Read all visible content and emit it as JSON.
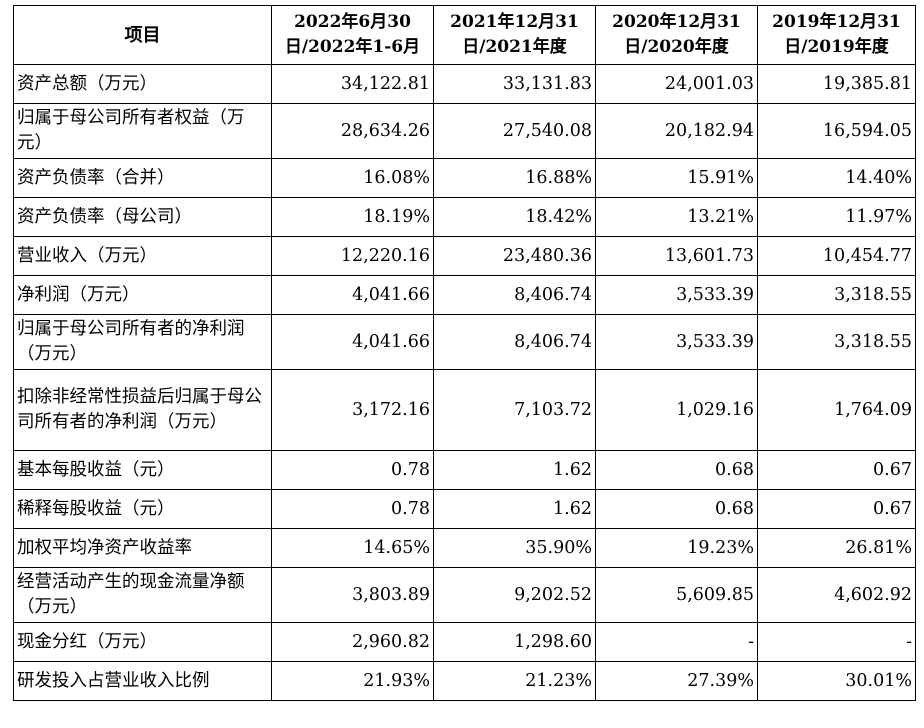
{
  "table": {
    "headers": [
      "项目",
      "2022年6月30日/2022年1-6月",
      "2021年12月31日/2021年度",
      "2020年12月31日/2020年度",
      "2019年12月31日/2019年度"
    ],
    "rows": [
      {
        "label": "资产总额（万元）",
        "values": [
          "34,122.81",
          "33,131.83",
          "24,001.03",
          "19,385.81"
        ]
      },
      {
        "label": "归属于母公司所有者权益（万元）",
        "values": [
          "28,634.26",
          "27,540.08",
          "20,182.94",
          "16,594.05"
        ]
      },
      {
        "label": "资产负债率（合并）",
        "values": [
          "16.08%",
          "16.88%",
          "15.91%",
          "14.40%"
        ]
      },
      {
        "label": "资产负债率（母公司）",
        "values": [
          "18.19%",
          "18.42%",
          "13.21%",
          "11.97%"
        ]
      },
      {
        "label": "营业收入（万元）",
        "values": [
          "12,220.16",
          "23,480.36",
          "13,601.73",
          "10,454.77"
        ]
      },
      {
        "label": "净利润（万元）",
        "values": [
          "4,041.66",
          "8,406.74",
          "3,533.39",
          "3,318.55"
        ]
      },
      {
        "label": "归属于母公司所有者的净利润（万元）",
        "values": [
          "4,041.66",
          "8,406.74",
          "3,533.39",
          "3,318.55"
        ]
      },
      {
        "label": "扣除非经常性损益后归属于母公司所有者的净利润（万元）",
        "values": [
          "3,172.16",
          "7,103.72",
          "1,029.16",
          "1,764.09"
        ]
      },
      {
        "label": "基本每股收益（元）",
        "values": [
          "0.78",
          "1.62",
          "0.68",
          "0.67"
        ]
      },
      {
        "label": "稀释每股收益（元）",
        "values": [
          "0.78",
          "1.62",
          "0.68",
          "0.67"
        ]
      },
      {
        "label": "加权平均净资产收益率",
        "values": [
          "14.65%",
          "35.90%",
          "19.23%",
          "26.81%"
        ]
      },
      {
        "label": "经营活动产生的现金流量净额（万元）",
        "values": [
          "3,803.89",
          "9,202.52",
          "5,609.85",
          "4,602.92"
        ]
      },
      {
        "label": "现金分红（万元）",
        "values": [
          "2,960.82",
          "1,298.60",
          "-",
          "-"
        ]
      },
      {
        "label": "研发投入占营业收入比例",
        "values": [
          "21.93%",
          "21.23%",
          "27.39%",
          "30.01%"
        ]
      }
    ]
  }
}
